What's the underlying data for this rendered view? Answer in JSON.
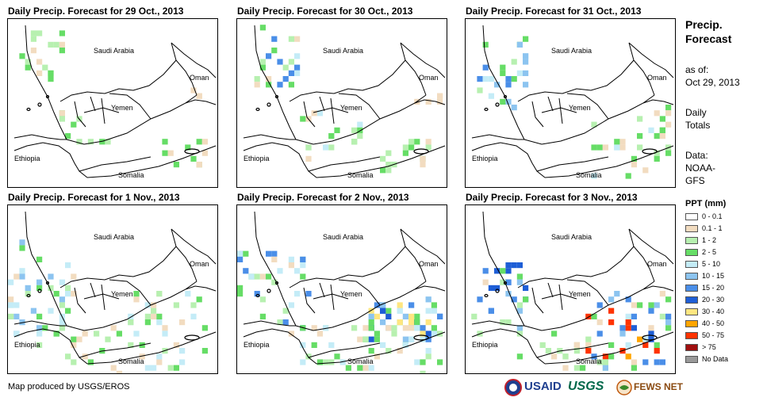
{
  "panels": [
    {
      "title": "Daily Precip. Forecast for 29 Oct., 2013"
    },
    {
      "title": "Daily Precip. Forecast for 30 Oct., 2013"
    },
    {
      "title": "Daily Precip. Forecast for 31 Oct., 2013"
    },
    {
      "title": "Daily Precip. Forecast for 1 Nov., 2013"
    },
    {
      "title": "Daily Precip. Forecast for 2 Nov., 2013"
    },
    {
      "title": "Daily Precip. Forecast for 3 Nov., 2013"
    }
  ],
  "map_labels": {
    "saudi": "Saudi Arabia",
    "oman": "Oman",
    "yemen": "Yemen",
    "ethiopia": "Ethiopia",
    "somalia": "Somalia"
  },
  "legend": {
    "title_line1": "Precip.",
    "title_line2": "Forecast",
    "asof_line1": "as of:",
    "asof_line2": "Oct 29, 2013",
    "daily_line1": "Daily",
    "daily_line2": "Totals",
    "data_line1": "Data:",
    "data_line2": "NOAA-",
    "data_line3": "GFS",
    "ppt_title": "PPT (mm)",
    "classes": [
      {
        "label": "0 - 0.1",
        "color": "#ffffff"
      },
      {
        "label": "0.1 - 1",
        "color": "#f2dcc0"
      },
      {
        "label": "1 - 2",
        "color": "#b7f0b0"
      },
      {
        "label": "2 - 5",
        "color": "#66dd66"
      },
      {
        "label": "5 - 10",
        "color": "#c4ecf7"
      },
      {
        "label": "10 - 15",
        "color": "#8cc4f0"
      },
      {
        "label": "15 - 20",
        "color": "#4a8ee8"
      },
      {
        "label": "20 - 30",
        "color": "#1e5ed6"
      },
      {
        "label": "30 - 40",
        "color": "#ffe680"
      },
      {
        "label": "40 - 50",
        "color": "#ffa500"
      },
      {
        "label": "50 - 75",
        "color": "#ff3300"
      },
      {
        "label": "> 75",
        "color": "#a01010"
      },
      {
        "label": "No Data",
        "color": "#999999"
      }
    ]
  },
  "footer": {
    "credit": "Map produced by USGS/EROS",
    "logo_usaid": "USAID",
    "logo_usgs": "USGS",
    "logo_fews": "FEWS NET"
  }
}
